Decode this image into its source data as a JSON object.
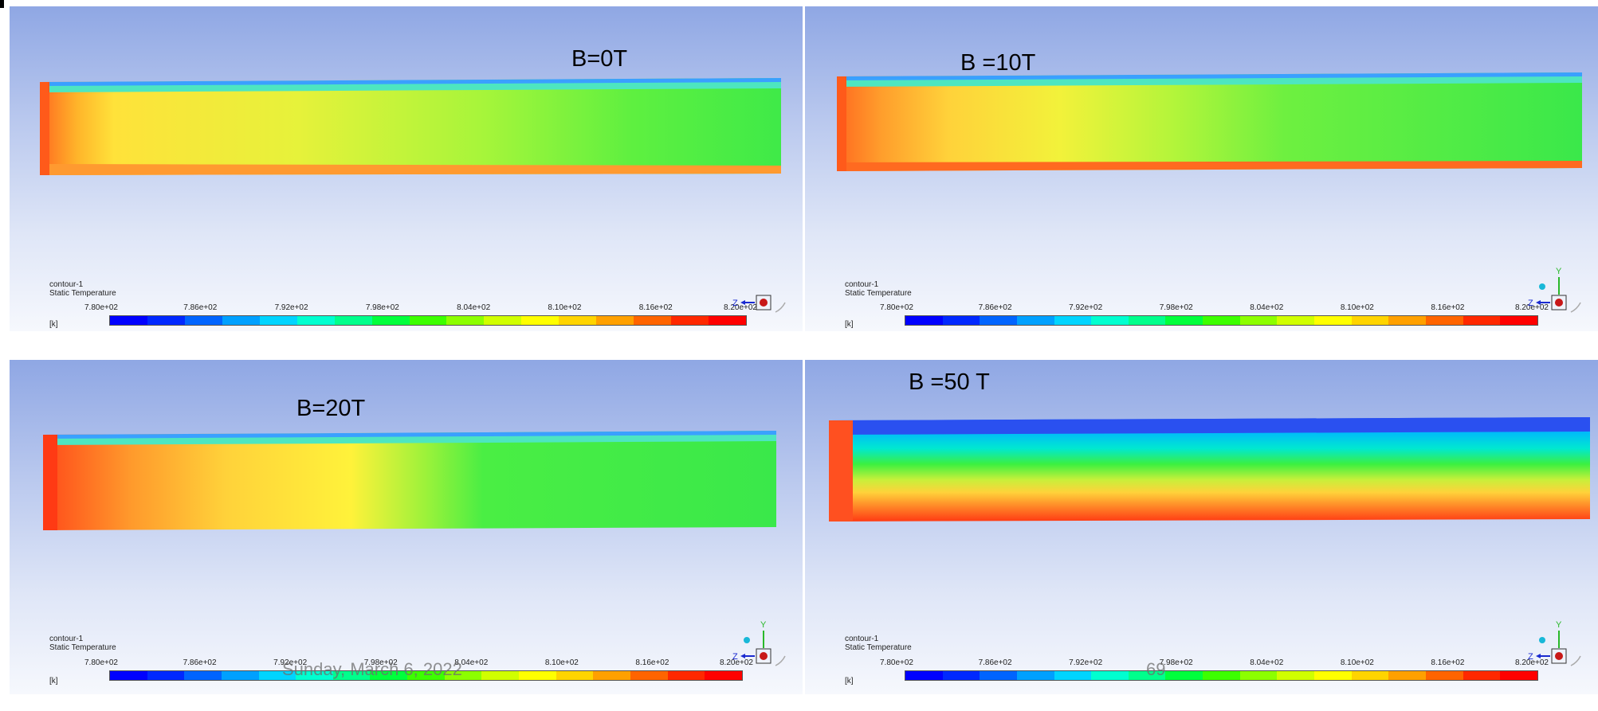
{
  "panels": [
    {
      "label": "B=0T",
      "contour": "contour-1",
      "quantity": "Static Temperature",
      "units": "[k]"
    },
    {
      "label": "B =10T",
      "contour": "contour-1",
      "quantity": "Static Temperature",
      "units": "[k]"
    },
    {
      "label": "B=20T",
      "contour": "contour-1",
      "quantity": "Static Temperature",
      "units": "[k]"
    },
    {
      "label": "B =50 T",
      "contour": "contour-1",
      "quantity": "Static Temperature",
      "units": "[k]"
    }
  ],
  "colorbar": {
    "ticks": [
      "7.80e+02",
      "7.86e+02",
      "7.92e+02",
      "7.98e+02",
      "8.04e+02",
      "8.10e+02",
      "8.16e+02",
      "8.20e+02"
    ],
    "colors": [
      "#0000ff",
      "#0028ff",
      "#0064ff",
      "#00a0ff",
      "#00d4ff",
      "#00ffd0",
      "#00ff8c",
      "#00ff3c",
      "#3cff00",
      "#8cff00",
      "#d0ff00",
      "#ffff00",
      "#ffd400",
      "#ffa000",
      "#ff6400",
      "#ff2800",
      "#ff0000"
    ]
  },
  "axis_triad": {
    "z_label": "Z",
    "y_label": "Y"
  },
  "footer": {
    "date": "Sunday, March 6, 2022",
    "page_number": "69"
  }
}
